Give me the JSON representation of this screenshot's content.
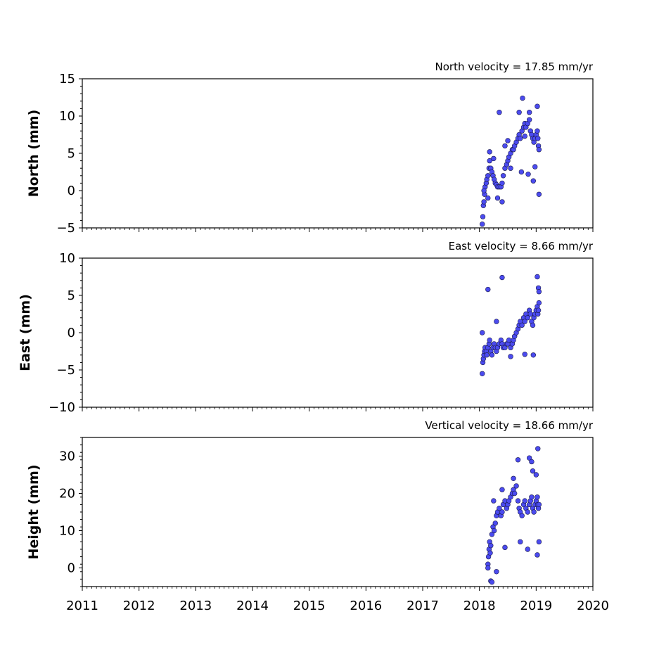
{
  "chart_data": [
    {
      "type": "scatter",
      "title": "North velocity = 17.85 mm/yr",
      "ylabel": "North (mm)",
      "xlim": [
        2011,
        2020
      ],
      "ylim": [
        -5,
        15
      ],
      "yticks": [
        -5,
        0,
        5,
        10,
        15
      ],
      "marker_color": "#4b4bef",
      "series": [
        {
          "x": [
            2018.05,
            2018.06,
            2018.07,
            2018.08,
            2018.09,
            2018.1,
            2018.12,
            2018.13,
            2018.15,
            2018.17,
            2018.18,
            2018.2,
            2018.22,
            2018.24,
            2018.26,
            2018.28,
            2018.3,
            2018.32,
            2018.35,
            2018.38,
            2018.4,
            2018.42,
            2018.45,
            2018.48,
            2018.5,
            2018.52,
            2018.55,
            2018.58,
            2018.6,
            2018.62,
            2018.65,
            2018.68,
            2018.7,
            2018.72,
            2018.75,
            2018.78,
            2018.8,
            2018.82,
            2018.85,
            2018.88,
            2018.9,
            2018.92,
            2018.94,
            2018.96,
            2018.98,
            2019.0,
            2019.02,
            2019.03,
            2019.04,
            2019.05
          ],
          "y": [
            -4.5,
            -3.5,
            -2.0,
            -1.5,
            -0.5,
            0.5,
            1.0,
            1.5,
            2.0,
            3.0,
            4.0,
            3.0,
            2.5,
            2.0,
            1.5,
            1.0,
            0.8,
            0.5,
            0.5,
            0.5,
            1.0,
            2.0,
            3.0,
            3.5,
            4.0,
            4.5,
            5.0,
            5.5,
            5.5,
            6.0,
            6.5,
            7.0,
            7.5,
            7.0,
            8.0,
            8.5,
            9.0,
            8.5,
            9.0,
            9.5,
            8.0,
            7.5,
            7.0,
            6.5,
            7.0,
            7.5,
            8.0,
            7.0,
            6.0,
            5.5
          ]
        },
        {
          "x": [
            2018.08,
            2018.15,
            2018.18,
            2018.25,
            2018.32,
            2018.35,
            2018.4,
            2018.45,
            2018.5,
            2018.55,
            2018.7,
            2018.74,
            2018.76,
            2018.8,
            2018.86,
            2018.88,
            2018.95,
            2018.98,
            2019.02,
            2019.05
          ],
          "y": [
            0.0,
            -1.0,
            5.2,
            4.3,
            -1.0,
            10.5,
            -1.5,
            6.0,
            6.7,
            3.0,
            10.5,
            2.5,
            12.4,
            7.3,
            2.2,
            10.5,
            1.3,
            3.2,
            11.3,
            -0.5
          ]
        }
      ]
    },
    {
      "type": "scatter",
      "title": "East velocity = 8.66 mm/yr",
      "ylabel": "East (mm)",
      "xlim": [
        2011,
        2020
      ],
      "ylim": [
        -10,
        10
      ],
      "yticks": [
        -10,
        -5,
        0,
        5,
        10
      ],
      "marker_color": "#4b4bef",
      "series": [
        {
          "x": [
            2018.05,
            2018.06,
            2018.07,
            2018.08,
            2018.09,
            2018.1,
            2018.12,
            2018.13,
            2018.15,
            2018.17,
            2018.18,
            2018.2,
            2018.22,
            2018.24,
            2018.26,
            2018.28,
            2018.3,
            2018.32,
            2018.35,
            2018.38,
            2018.4,
            2018.42,
            2018.45,
            2018.48,
            2018.5,
            2018.52,
            2018.55,
            2018.58,
            2018.6,
            2018.62,
            2018.65,
            2018.68,
            2018.7,
            2018.72,
            2018.75,
            2018.78,
            2018.8,
            2018.82,
            2018.85,
            2018.88,
            2018.9,
            2018.92,
            2018.94,
            2018.96,
            2018.98,
            2019.0,
            2019.02,
            2019.03,
            2019.04,
            2019.05
          ],
          "y": [
            -5.5,
            -4.0,
            -3.5,
            -3.0,
            -2.5,
            -2.0,
            -2.5,
            -3.0,
            -2.0,
            -1.5,
            -1.0,
            -2.5,
            -3.0,
            -2.0,
            -1.5,
            -2.0,
            -2.5,
            -2.0,
            -1.5,
            -1.0,
            -1.5,
            -2.0,
            -2.0,
            -1.5,
            -1.5,
            -1.0,
            -2.0,
            -1.5,
            -1.0,
            -0.5,
            0.0,
            0.5,
            1.0,
            1.5,
            1.0,
            2.0,
            1.5,
            2.5,
            2.0,
            3.0,
            2.5,
            1.5,
            1.0,
            2.0,
            2.5,
            3.0,
            3.5,
            2.5,
            3.0,
            4.0
          ]
        },
        {
          "x": [
            2018.05,
            2018.15,
            2018.3,
            2018.4,
            2018.55,
            2018.8,
            2018.95,
            2019.02,
            2019.04,
            2019.05
          ],
          "y": [
            0.0,
            5.8,
            1.5,
            7.4,
            -3.2,
            -2.9,
            -3.0,
            7.5,
            6.0,
            5.5
          ]
        }
      ]
    },
    {
      "type": "scatter",
      "title": "Vertical velocity = 18.66 mm/yr",
      "ylabel": "Height (mm)",
      "xlim": [
        2011,
        2020
      ],
      "ylim": [
        -5,
        35
      ],
      "yticks": [
        0,
        10,
        20,
        30
      ],
      "xticks": [
        2011,
        2012,
        2013,
        2014,
        2015,
        2016,
        2017,
        2018,
        2019,
        2020
      ],
      "marker_color": "#4b4bef",
      "series": [
        {
          "x": [
            2018.15,
            2018.16,
            2018.17,
            2018.18,
            2018.19,
            2018.2,
            2018.22,
            2018.24,
            2018.26,
            2018.28,
            2018.3,
            2018.32,
            2018.35,
            2018.38,
            2018.4,
            2018.42,
            2018.45,
            2018.48,
            2018.5,
            2018.52,
            2018.55,
            2018.58,
            2018.6,
            2018.62,
            2018.65,
            2018.68,
            2018.7,
            2018.72,
            2018.75,
            2018.78,
            2018.8,
            2018.82,
            2018.85,
            2018.88,
            2018.9,
            2018.92,
            2018.94,
            2018.96,
            2018.98,
            2019.0,
            2019.02,
            2019.03,
            2019.04,
            2019.05
          ],
          "y": [
            1.0,
            3.0,
            5.0,
            7.0,
            4.0,
            6.0,
            9.0,
            11.0,
            10.0,
            12.0,
            14.0,
            15.0,
            16.0,
            14.0,
            15.0,
            17.0,
            18.0,
            16.0,
            17.0,
            18.0,
            19.0,
            20.0,
            21.0,
            20.0,
            22.0,
            18.0,
            16.0,
            15.0,
            14.0,
            17.0,
            18.0,
            16.0,
            15.0,
            17.0,
            18.0,
            19.0,
            16.0,
            15.0,
            17.0,
            18.0,
            19.0,
            17.0,
            16.0,
            17.0
          ]
        },
        {
          "x": [
            2018.15,
            2018.2,
            2018.22,
            2018.25,
            2018.3,
            2018.4,
            2018.45,
            2018.6,
            2018.68,
            2018.72,
            2018.85,
            2018.88,
            2018.92,
            2018.94,
            2019.0,
            2019.02,
            2019.03,
            2019.05
          ],
          "y": [
            0.0,
            -3.5,
            -3.8,
            18.0,
            -1.0,
            21.0,
            5.5,
            24.0,
            29.0,
            7.0,
            5.0,
            29.5,
            28.5,
            26.0,
            25.0,
            3.5,
            32.0,
            7.0
          ]
        }
      ]
    }
  ]
}
